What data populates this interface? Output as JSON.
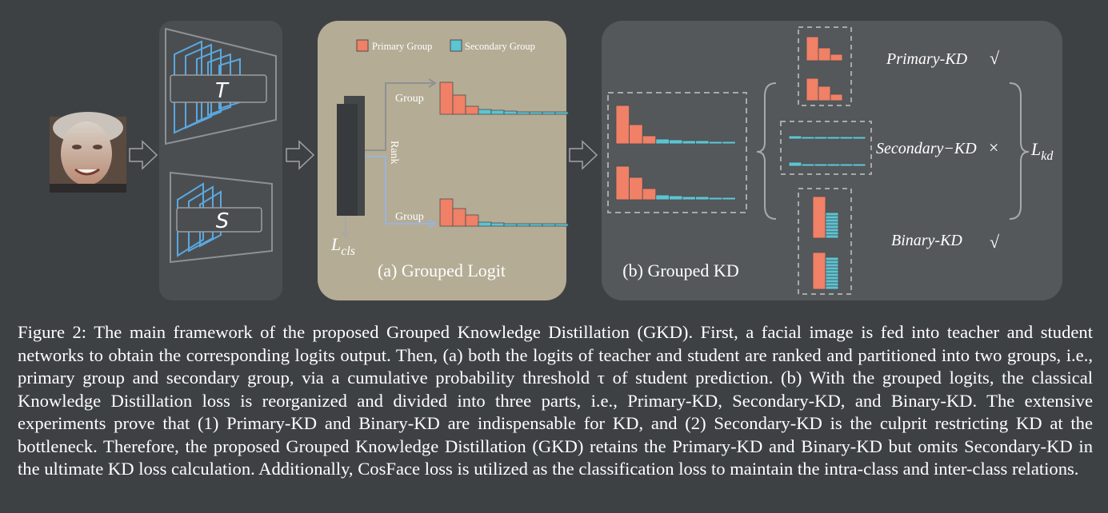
{
  "figure": {
    "teacher_label": "T",
    "student_label": "S",
    "legend": {
      "primary": "Primary Group",
      "secondary": "Secondary Group"
    },
    "group_label": "Group",
    "rank_label": "Rank",
    "lcls_main": "L",
    "lcls_sub": "cls",
    "panel_a_title": "(a) Grouped Logit",
    "panel_b_title": "(b) Grouped KD",
    "primary_kd": "Primary-KD",
    "secondary_kd": "Secondary−KD",
    "binary_kd": "Binary-KD",
    "check_mark": "√",
    "cross_mark": "×",
    "lkd_main": "L",
    "lkd_sub": "kd",
    "colors": {
      "primary": "#f08066",
      "secondary": "#5cc4d2",
      "panel_a_bg": "#b4ac94",
      "panel_b_bg": "#55585b",
      "panel_bg": "#4b4e51"
    }
  },
  "caption": "Figure 2: The main framework of the proposed Grouped Knowledge Distillation (GKD). First, a facial image is fed into teacher and student networks to obtain the corresponding logits output. Then, (a) both the logits of teacher and student are ranked and partitioned into two groups, i.e., primary group and secondary group, via a cumulative probability threshold τ of student prediction. (b) With the grouped logits, the classical Knowledge Distillation loss is reorganized and divided into three parts, i.e., Primary-KD, Secondary-KD, and Binary-KD. The extensive experiments prove that (1) Primary-KD and Binary-KD are indispensable for KD, and (2) Secondary-KD is the culprit restricting KD at the bottleneck. Therefore, the proposed Grouped Knowledge Distillation (GKD) retains the Primary-KD and Binary-KD but omits Secondary-KD in the ultimate KD loss calculation. Additionally, CosFace loss is utilized as the classification loss to maintain the intra-class and inter-class relations."
}
